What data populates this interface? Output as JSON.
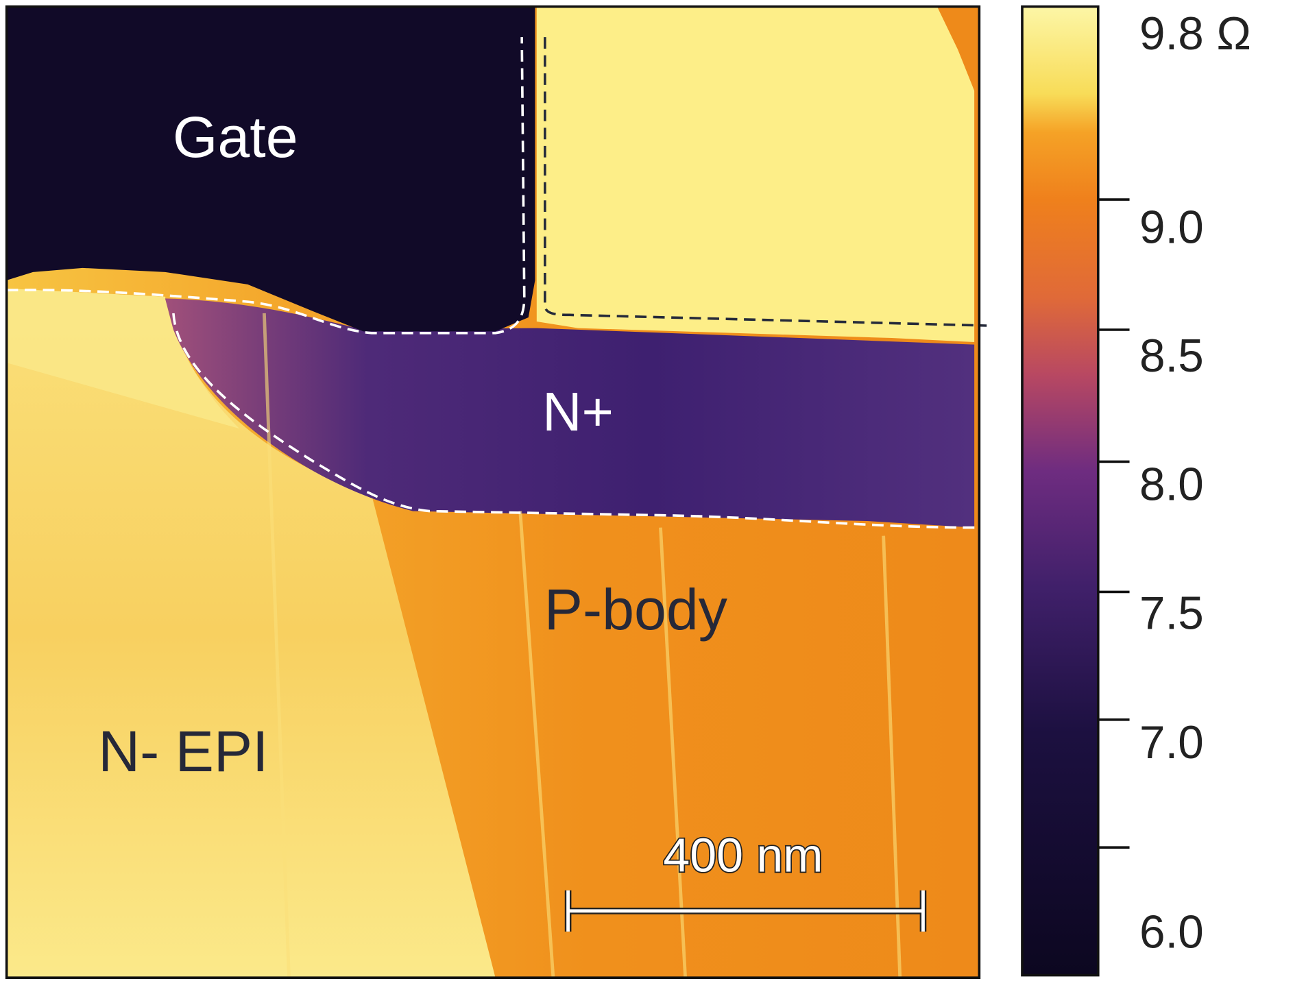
{
  "regions": {
    "gate": "Gate",
    "n_plus": "N+",
    "p_body": "P-body",
    "n_epi": "N- EPI"
  },
  "scale_bar": "400 nm",
  "colorbar": {
    "ticks": [
      "9.8 Ω",
      "9.0",
      "8.5",
      "8.0",
      "7.5",
      "7.0",
      "6.0"
    ]
  }
}
